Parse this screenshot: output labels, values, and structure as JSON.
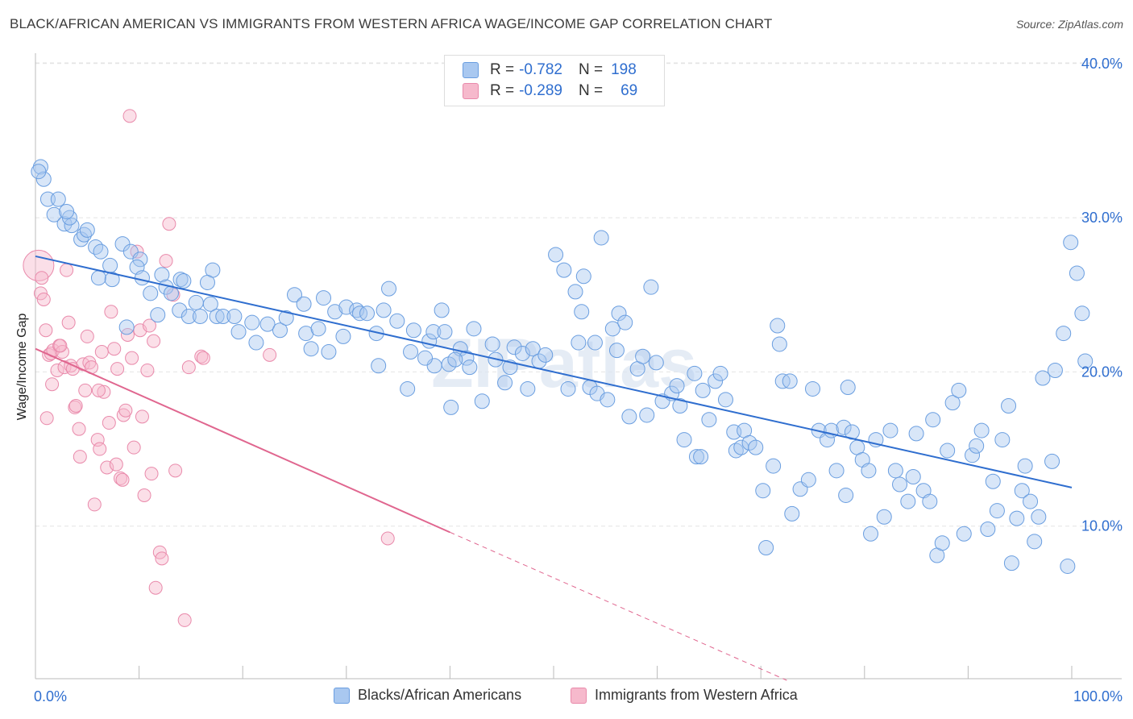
{
  "header": {
    "title": "BLACK/AFRICAN AMERICAN VS IMMIGRANTS FROM WESTERN AFRICA WAGE/INCOME GAP CORRELATION CHART",
    "source": "Source: ZipAtlas.com"
  },
  "legend": {
    "series1": {
      "r_label": "R =",
      "r_value": "-0.782",
      "n_label": "N =",
      "n_value": "198"
    },
    "series2": {
      "r_label": "R =",
      "r_value": "-0.289",
      "n_label": "N =",
      "n_value": "69"
    }
  },
  "colors": {
    "blue_fill": "#a9c8f0",
    "blue_stroke": "#6a9ee0",
    "blue_line": "#2f6ecf",
    "pink_fill": "#f6b9cc",
    "pink_stroke": "#e98aab",
    "pink_line": "#e0668f",
    "axis_text": "#2f6ecf",
    "grid": "#e4e4e4"
  },
  "chart_data": {
    "type": "scatter",
    "title": "BLACK/AFRICAN AMERICAN VS IMMIGRANTS FROM WESTERN AFRICA WAGE/INCOME GAP CORRELATION CHART",
    "xlabel": "",
    "ylabel": "Wage/Income Gap",
    "xlim": [
      0,
      100
    ],
    "ylim": [
      0,
      41
    ],
    "x_tick_labels": [
      "0.0%",
      "100.0%"
    ],
    "y_ticks": [
      10,
      20,
      30,
      40
    ],
    "y_tick_labels": [
      "10.0%",
      "20.0%",
      "30.0%",
      "40.0%"
    ],
    "watermark": "ZIPatlas",
    "series": [
      {
        "name": "Blacks/African Americans",
        "r": -0.782,
        "n": 198,
        "trend": {
          "x": [
            0,
            100
          ],
          "y": [
            27.5,
            12.5
          ]
        },
        "points": [
          [
            0.5,
            33.3
          ],
          [
            0.8,
            32.5
          ],
          [
            1.2,
            31.2
          ],
          [
            2.2,
            31.2
          ],
          [
            1.8,
            30.2
          ],
          [
            2.8,
            29.6
          ],
          [
            3.5,
            29.5
          ],
          [
            3.3,
            30.0
          ],
          [
            4.4,
            28.6
          ],
          [
            4.7,
            28.9
          ],
          [
            5.8,
            28.1
          ],
          [
            6.3,
            27.8
          ],
          [
            8.4,
            28.3
          ],
          [
            9.2,
            27.8
          ],
          [
            10.1,
            27.3
          ],
          [
            9.8,
            26.8
          ],
          [
            7.2,
            26.9
          ],
          [
            6.1,
            26.1
          ],
          [
            7.4,
            26.0
          ],
          [
            10.3,
            26.1
          ],
          [
            12.2,
            26.3
          ],
          [
            14.0,
            26.0
          ],
          [
            14.3,
            25.9
          ],
          [
            17.1,
            26.6
          ],
          [
            16.6,
            25.8
          ],
          [
            11.1,
            25.1
          ],
          [
            12.6,
            25.5
          ],
          [
            13.1,
            25.1
          ],
          [
            15.5,
            24.5
          ],
          [
            16.9,
            24.4
          ],
          [
            13.9,
            24.0
          ],
          [
            14.8,
            23.6
          ],
          [
            17.5,
            23.6
          ],
          [
            18.1,
            23.6
          ],
          [
            19.2,
            23.6
          ],
          [
            15.9,
            23.6
          ],
          [
            11.8,
            23.7
          ],
          [
            8.8,
            22.9
          ],
          [
            19.6,
            22.6
          ],
          [
            20.9,
            23.2
          ],
          [
            22.4,
            23.1
          ],
          [
            21.3,
            21.9
          ],
          [
            23.6,
            22.7
          ],
          [
            24.2,
            23.5
          ],
          [
            25.0,
            25.0
          ],
          [
            25.9,
            24.4
          ],
          [
            26.1,
            22.5
          ],
          [
            27.3,
            22.8
          ],
          [
            27.8,
            24.8
          ],
          [
            26.6,
            21.5
          ],
          [
            28.9,
            23.9
          ],
          [
            28.3,
            21.3
          ],
          [
            29.7,
            22.3
          ],
          [
            30.0,
            24.2
          ],
          [
            31.0,
            24.0
          ],
          [
            31.3,
            23.8
          ],
          [
            32.0,
            23.8
          ],
          [
            33.6,
            24.0
          ],
          [
            32.9,
            22.5
          ],
          [
            34.1,
            25.4
          ],
          [
            33.1,
            20.4
          ],
          [
            34.9,
            23.3
          ],
          [
            36.5,
            22.7
          ],
          [
            36.2,
            21.3
          ],
          [
            35.9,
            18.9
          ],
          [
            38.0,
            22.0
          ],
          [
            38.4,
            22.6
          ],
          [
            38.5,
            20.4
          ],
          [
            37.6,
            20.9
          ],
          [
            39.2,
            24.0
          ],
          [
            39.9,
            20.5
          ],
          [
            40.1,
            17.7
          ],
          [
            39.5,
            22.6
          ],
          [
            41.0,
            21.5
          ],
          [
            41.6,
            20.9
          ],
          [
            41.9,
            20.3
          ],
          [
            40.5,
            20.8
          ],
          [
            42.3,
            22.8
          ],
          [
            43.1,
            18.1
          ],
          [
            44.1,
            21.8
          ],
          [
            44.4,
            20.8
          ],
          [
            45.8,
            20.3
          ],
          [
            46.2,
            21.6
          ],
          [
            45.3,
            19.3
          ],
          [
            47.0,
            21.2
          ],
          [
            48.0,
            21.5
          ],
          [
            47.5,
            18.9
          ],
          [
            48.6,
            20.7
          ],
          [
            49.2,
            21.1
          ],
          [
            50.2,
            27.6
          ],
          [
            51.0,
            26.6
          ],
          [
            51.4,
            18.9
          ],
          [
            52.1,
            25.2
          ],
          [
            52.7,
            23.9
          ],
          [
            52.9,
            26.2
          ],
          [
            52.4,
            21.9
          ],
          [
            54.0,
            21.9
          ],
          [
            53.5,
            19.0
          ],
          [
            54.6,
            28.7
          ],
          [
            54.2,
            18.6
          ],
          [
            55.7,
            22.8
          ],
          [
            55.2,
            18.2
          ],
          [
            56.3,
            23.8
          ],
          [
            56.9,
            23.2
          ],
          [
            56.1,
            21.4
          ],
          [
            57.3,
            17.1
          ],
          [
            58.1,
            20.2
          ],
          [
            58.6,
            21.0
          ],
          [
            59.0,
            17.2
          ],
          [
            59.4,
            25.5
          ],
          [
            59.9,
            20.6
          ],
          [
            60.5,
            18.1
          ],
          [
            61.4,
            18.6
          ],
          [
            61.9,
            19.1
          ],
          [
            62.2,
            17.8
          ],
          [
            62.6,
            15.6
          ],
          [
            63.6,
            19.9
          ],
          [
            64.4,
            18.8
          ],
          [
            63.8,
            14.5
          ],
          [
            64.2,
            14.5
          ],
          [
            65.0,
            16.9
          ],
          [
            65.6,
            19.4
          ],
          [
            66.1,
            19.9
          ],
          [
            66.6,
            18.2
          ],
          [
            67.6,
            14.9
          ],
          [
            67.4,
            16.1
          ],
          [
            68.4,
            16.2
          ],
          [
            68.1,
            15.1
          ],
          [
            68.9,
            15.4
          ],
          [
            69.5,
            15.1
          ],
          [
            70.2,
            12.3
          ],
          [
            70.5,
            8.6
          ],
          [
            71.2,
            13.9
          ],
          [
            71.6,
            23.0
          ],
          [
            72.1,
            19.4
          ],
          [
            71.8,
            21.8
          ],
          [
            72.8,
            19.4
          ],
          [
            73.0,
            10.8
          ],
          [
            73.8,
            12.4
          ],
          [
            74.6,
            13.0
          ],
          [
            75.0,
            18.9
          ],
          [
            75.6,
            16.2
          ],
          [
            76.4,
            15.6
          ],
          [
            76.8,
            16.2
          ],
          [
            77.3,
            13.6
          ],
          [
            78.0,
            16.4
          ],
          [
            78.4,
            19.0
          ],
          [
            78.8,
            16.1
          ],
          [
            78.2,
            12.0
          ],
          [
            79.3,
            15.1
          ],
          [
            79.8,
            14.3
          ],
          [
            80.4,
            13.6
          ],
          [
            80.6,
            9.5
          ],
          [
            81.1,
            15.6
          ],
          [
            81.9,
            10.6
          ],
          [
            82.5,
            16.2
          ],
          [
            83.0,
            13.6
          ],
          [
            83.4,
            12.7
          ],
          [
            84.2,
            11.6
          ],
          [
            84.7,
            13.2
          ],
          [
            85.0,
            16.0
          ],
          [
            85.7,
            12.3
          ],
          [
            86.3,
            11.6
          ],
          [
            86.6,
            16.9
          ],
          [
            87.0,
            8.1
          ],
          [
            87.5,
            8.9
          ],
          [
            88.0,
            14.9
          ],
          [
            88.5,
            18.0
          ],
          [
            89.1,
            18.8
          ],
          [
            89.6,
            9.5
          ],
          [
            90.4,
            14.6
          ],
          [
            90.8,
            15.2
          ],
          [
            91.3,
            16.2
          ],
          [
            91.9,
            9.8
          ],
          [
            92.4,
            12.9
          ],
          [
            92.8,
            11.0
          ],
          [
            93.3,
            15.6
          ],
          [
            93.9,
            17.8
          ],
          [
            94.2,
            7.6
          ],
          [
            94.7,
            10.5
          ],
          [
            95.2,
            12.3
          ],
          [
            95.5,
            13.9
          ],
          [
            96.0,
            11.6
          ],
          [
            96.4,
            9.0
          ],
          [
            96.8,
            10.6
          ],
          [
            97.2,
            19.6
          ],
          [
            98.1,
            14.2
          ],
          [
            98.4,
            20.1
          ],
          [
            99.2,
            22.5
          ],
          [
            99.6,
            7.4
          ],
          [
            99.9,
            28.4
          ],
          [
            100.5,
            26.4
          ],
          [
            101.0,
            23.8
          ],
          [
            101.3,
            20.7
          ],
          [
            0.3,
            33.0
          ],
          [
            3.0,
            30.4
          ],
          [
            5.0,
            29.2
          ]
        ]
      },
      {
        "name": "Immigrants from Western Africa",
        "r": -0.289,
        "n": 69,
        "trend": {
          "x": [
            0,
            40
          ],
          "y": [
            21.5,
            9.6
          ]
        },
        "trend_dashed": {
          "x": [
            40,
            72.5
          ],
          "y": [
            9.6,
            0
          ]
        },
        "points": [
          [
            0.3,
            26.9
          ],
          [
            0.5,
            25.1
          ],
          [
            0.8,
            24.7
          ],
          [
            0.6,
            26.1
          ],
          [
            1.0,
            22.7
          ],
          [
            1.3,
            21.1
          ],
          [
            1.5,
            21.2
          ],
          [
            1.7,
            21.4
          ],
          [
            2.1,
            20.1
          ],
          [
            2.3,
            21.7
          ],
          [
            2.6,
            21.3
          ],
          [
            2.8,
            20.3
          ],
          [
            3.0,
            26.6
          ],
          [
            3.2,
            23.2
          ],
          [
            3.4,
            20.4
          ],
          [
            3.6,
            20.2
          ],
          [
            3.8,
            17.7
          ],
          [
            3.9,
            17.8
          ],
          [
            4.2,
            16.3
          ],
          [
            4.3,
            14.5
          ],
          [
            4.6,
            20.5
          ],
          [
            4.8,
            18.8
          ],
          [
            5.0,
            22.3
          ],
          [
            5.2,
            20.6
          ],
          [
            5.4,
            20.3
          ],
          [
            5.7,
            11.4
          ],
          [
            6.0,
            15.6
          ],
          [
            6.2,
            15.0
          ],
          [
            6.4,
            21.3
          ],
          [
            6.6,
            18.7
          ],
          [
            6.9,
            13.8
          ],
          [
            7.1,
            16.7
          ],
          [
            7.3,
            23.9
          ],
          [
            7.6,
            21.5
          ],
          [
            7.8,
            14.0
          ],
          [
            7.9,
            20.2
          ],
          [
            8.2,
            13.1
          ],
          [
            8.5,
            17.2
          ],
          [
            8.7,
            17.5
          ],
          [
            8.9,
            22.4
          ],
          [
            9.1,
            36.6
          ],
          [
            9.3,
            20.9
          ],
          [
            9.5,
            15.1
          ],
          [
            9.8,
            27.8
          ],
          [
            10.1,
            22.7
          ],
          [
            10.3,
            17.1
          ],
          [
            10.5,
            12.0
          ],
          [
            10.8,
            20.1
          ],
          [
            11.2,
            13.4
          ],
          [
            11.4,
            22.0
          ],
          [
            11.6,
            6.0
          ],
          [
            12.0,
            8.3
          ],
          [
            12.2,
            7.9
          ],
          [
            12.6,
            27.2
          ],
          [
            12.9,
            29.6
          ],
          [
            13.3,
            25.0
          ],
          [
            13.5,
            13.6
          ],
          [
            14.4,
            3.9
          ],
          [
            14.8,
            20.3
          ],
          [
            16.0,
            21.0
          ],
          [
            22.6,
            21.1
          ],
          [
            34.0,
            9.2
          ],
          [
            1.1,
            17.0
          ],
          [
            1.6,
            19.2
          ],
          [
            2.4,
            21.7
          ],
          [
            6.1,
            18.8
          ],
          [
            8.4,
            13.0
          ],
          [
            11.0,
            23.0
          ],
          [
            16.2,
            20.9
          ]
        ]
      }
    ]
  }
}
